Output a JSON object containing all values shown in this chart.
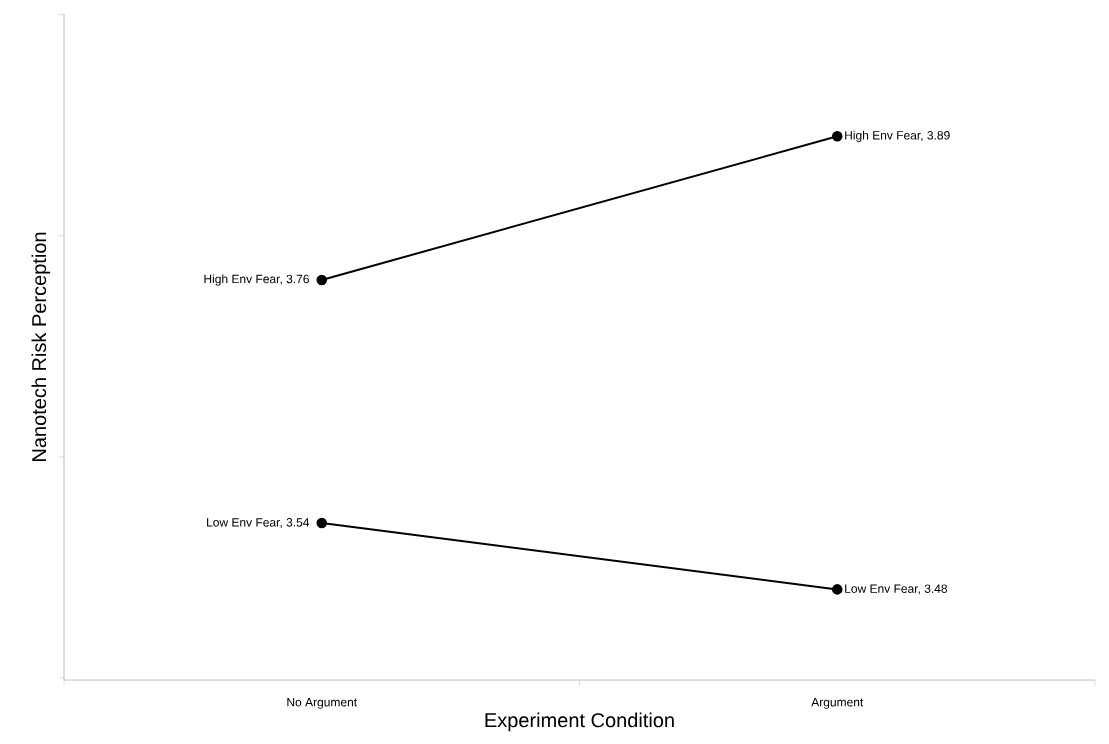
{
  "chart_data": {
    "type": "line",
    "xlabel": "Experiment Condition",
    "ylabel": "Nanotech Risk Perception",
    "categories": [
      "No Argument",
      "Argument"
    ],
    "tick_labels": "x",
    "marker": "circle",
    "line_style": "solid",
    "series": [
      {
        "color": "#000000",
        "values": [
          3.76,
          3.89
        ],
        "value_labels": [
          "High Env Fear, 3.76",
          "High Env Fear, 3.89"
        ]
      },
      {
        "color": "#000000",
        "values": [
          3.54,
          3.48
        ],
        "value_labels": [
          "Low Env Fear, 3.54",
          "Low Env Fear, 3.48"
        ]
      }
    ]
  }
}
